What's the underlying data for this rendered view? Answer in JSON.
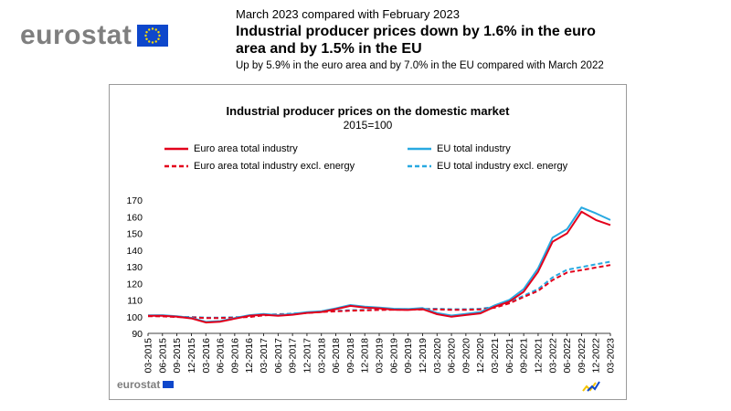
{
  "header": {
    "logo_text": "eurostat",
    "date_line": "March 2023 compared with February 2023",
    "title": "Industrial producer prices down by 1.6% in the euro area and by 1.5% in the EU",
    "subtitle": "Up by 5.9% in the euro area and by 7.0% in the EU compared with March 2022"
  },
  "footer": {
    "logo_text": "eurostat"
  },
  "colors": {
    "euro_area": "#e3001b",
    "eu": "#28a9e1",
    "logo_grey": "#7f7f7f",
    "flag_blue": "#0e47cb",
    "flag_star": "#ffdd00"
  },
  "chart_data": {
    "type": "line",
    "title": "Industrial producer prices on the domestic market",
    "subtitle": "2015=100",
    "ylim": [
      90,
      170
    ],
    "yticks": [
      90,
      100,
      110,
      120,
      130,
      140,
      150,
      160,
      170
    ],
    "xticks": [
      "03-2015",
      "06-2015",
      "09-2015",
      "12-2015",
      "03-2016",
      "06-2016",
      "09-2016",
      "12-2016",
      "03-2017",
      "06-2017",
      "09-2017",
      "12-2017",
      "03-2018",
      "06-2018",
      "09-2018",
      "12-2018",
      "03-2019",
      "06-2019",
      "09-2019",
      "12-2019",
      "03-2020",
      "06-2020",
      "09-2020",
      "12-2020",
      "03-2021",
      "06-2021",
      "09-2021",
      "12-2021",
      "03-2022",
      "06-2022",
      "09-2022",
      "12-2022",
      "03-2023"
    ],
    "x": [
      "03-2015",
      "06-2015",
      "09-2015",
      "12-2015",
      "03-2016",
      "06-2016",
      "09-2016",
      "12-2016",
      "03-2017",
      "06-2017",
      "09-2017",
      "12-2017",
      "03-2018",
      "06-2018",
      "09-2018",
      "12-2018",
      "03-2019",
      "06-2019",
      "09-2019",
      "12-2019",
      "03-2020",
      "06-2020",
      "09-2020",
      "12-2020",
      "03-2021",
      "06-2021",
      "09-2021",
      "12-2021",
      "03-2022",
      "06-2022",
      "09-2022",
      "12-2022",
      "03-2023"
    ],
    "legend_position": "top",
    "series": [
      {
        "name": "Euro area total industry",
        "color": "#e3001b",
        "dashed": false,
        "values": [
          100.5,
          100.6,
          100.0,
          99.0,
          96.5,
          97.0,
          98.8,
          100.5,
          101.2,
          100.5,
          101.2,
          102.3,
          102.8,
          104.5,
          106.5,
          105.5,
          105.0,
          104.2,
          104.0,
          104.6,
          101.5,
          100.0,
          101.0,
          102.0,
          106.0,
          109.0,
          115.0,
          127.0,
          145.0,
          150.0,
          163.0,
          158.0,
          155.0
        ]
      },
      {
        "name": "EU total industry",
        "color": "#28a9e1",
        "dashed": false,
        "values": [
          100.8,
          100.9,
          100.3,
          99.3,
          96.9,
          97.4,
          99.2,
          100.9,
          101.6,
          100.9,
          101.6,
          102.7,
          103.3,
          105.0,
          107.0,
          106.0,
          105.5,
          104.8,
          104.6,
          105.2,
          102.2,
          100.7,
          101.7,
          102.8,
          106.8,
          110.0,
          116.5,
          129.0,
          147.5,
          152.5,
          165.5,
          162.0,
          158.0
        ]
      },
      {
        "name": "Euro area total industry excl. energy",
        "color": "#e3001b",
        "dashed": true,
        "values": [
          100.3,
          100.2,
          99.8,
          99.6,
          99.2,
          99.2,
          99.4,
          99.8,
          100.8,
          101.2,
          101.6,
          102.2,
          102.8,
          103.2,
          103.6,
          103.8,
          104.0,
          104.2,
          104.2,
          104.3,
          104.4,
          104.1,
          104.1,
          104.4,
          105.4,
          108.0,
          111.8,
          115.5,
          122.0,
          126.5,
          128.0,
          129.5,
          131.0
        ]
      },
      {
        "name": "EU total industry excl. energy",
        "color": "#28a9e1",
        "dashed": true,
        "values": [
          100.5,
          100.4,
          100.0,
          99.8,
          99.5,
          99.5,
          99.7,
          100.1,
          101.1,
          101.5,
          101.9,
          102.5,
          103.1,
          103.5,
          103.9,
          104.1,
          104.3,
          104.5,
          104.6,
          104.7,
          104.8,
          104.5,
          104.5,
          104.8,
          105.9,
          108.7,
          112.6,
          116.6,
          123.6,
          128.2,
          129.8,
          131.4,
          133.0
        ]
      }
    ]
  }
}
